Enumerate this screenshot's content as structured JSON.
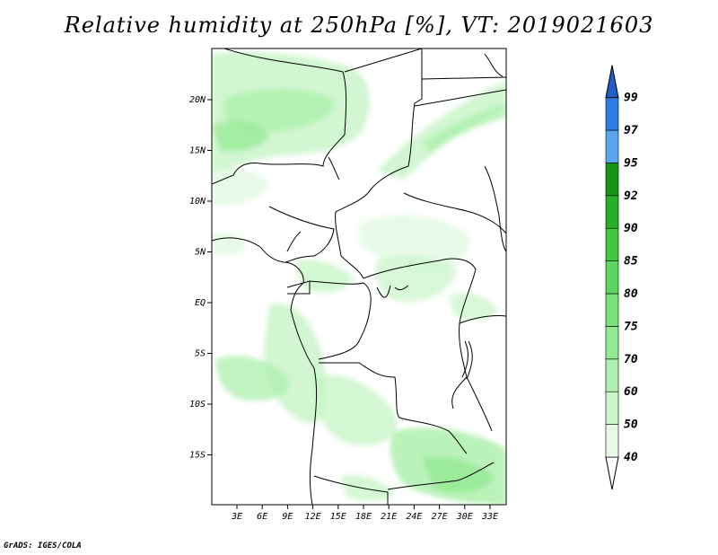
{
  "title": "Relative humidity at 250hPa [%], VT: 2019021603",
  "credit": "GrADS: IGES/COLA",
  "map": {
    "lon_ticks": [
      "3E",
      "6E",
      "9E",
      "12E",
      "15E",
      "18E",
      "21E",
      "24E",
      "27E",
      "30E",
      "33E"
    ],
    "lat_ticks": [
      "20N",
      "15N",
      "10N",
      "5N",
      "EQ",
      "5S",
      "10S",
      "15S"
    ]
  },
  "colorbar": {
    "levels": [
      "40",
      "50",
      "60",
      "70",
      "75",
      "80",
      "85",
      "90",
      "92",
      "95",
      "97",
      "99"
    ],
    "colors": [
      "#ffffff",
      "#e6fae6",
      "#c9f5c9",
      "#aef0ae",
      "#92ea92",
      "#78e278",
      "#5cd65c",
      "#40c840",
      "#26b026",
      "#149614",
      "#5aa5f0",
      "#2d7be6",
      "#1f5fc8"
    ]
  }
}
